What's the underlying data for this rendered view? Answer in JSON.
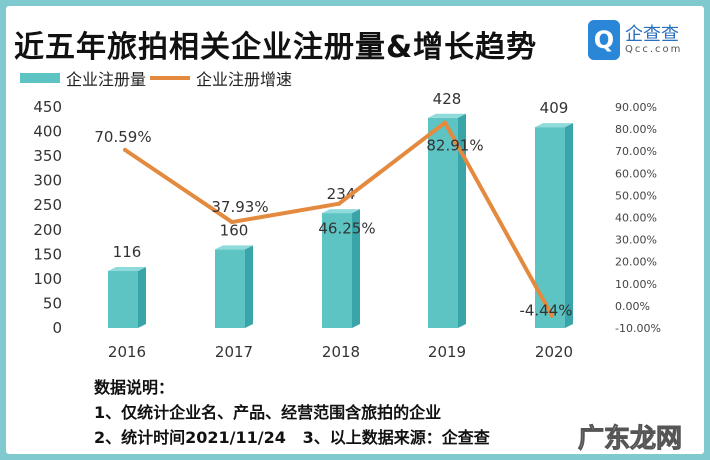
{
  "title": "近五年旅拍相关企业注册量&增长趋势",
  "logo": {
    "cn": "企查查",
    "en": "Qcc.com"
  },
  "notes": {
    "heading": "数据说明：",
    "line1": "1、仅统计企业名、产品、经营范围含旅拍的企业",
    "line2": "2、统计时间2021/11/24   3、以上数据来源：企查查"
  },
  "watermark": "广东龙网",
  "chart_data": {
    "type": "bar+line",
    "categories": [
      "2016",
      "2017",
      "2018",
      "2019",
      "2020"
    ],
    "series": [
      {
        "name": "企业注册量",
        "type": "bar",
        "axis": "left",
        "color": "#5ec3c3",
        "values": [
          116,
          160,
          234,
          428,
          409
        ],
        "labels": [
          "116",
          "160",
          "234",
          "428",
          "409"
        ]
      },
      {
        "name": "企业注册增速",
        "type": "line",
        "axis": "right",
        "color": "#e48a3e",
        "values": [
          70.59,
          37.93,
          46.25,
          82.91,
          -4.44
        ],
        "labels": [
          "70.59%",
          "37.93%",
          "46.25%",
          "82.91%",
          "-4.44%"
        ]
      }
    ],
    "left_axis": {
      "ylim": [
        0,
        450
      ],
      "ticks": [
        "0",
        "50",
        "100",
        "150",
        "200",
        "250",
        "300",
        "350",
        "400",
        "450"
      ]
    },
    "right_axis": {
      "ylim": [
        -10,
        90
      ],
      "ticks": [
        "-10.00%",
        "0.00%",
        "10.00%",
        "20.00%",
        "30.00%",
        "40.00%",
        "50.00%",
        "60.00%",
        "70.00%",
        "80.00%",
        "90.00%"
      ]
    },
    "grid": false,
    "legend": "top-left"
  }
}
